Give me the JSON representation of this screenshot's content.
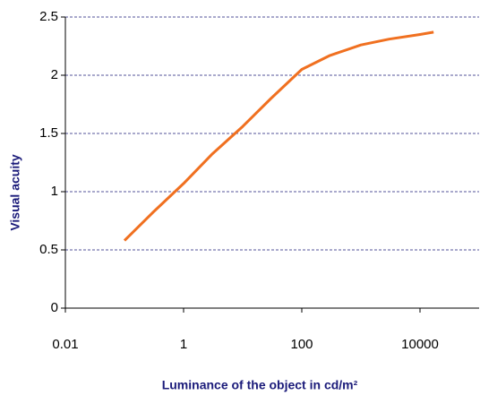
{
  "chart_data": {
    "type": "line",
    "x_label": "Luminance of the object in cd/m²",
    "y_label": "Visual acuity",
    "x": [
      0.1,
      0.3,
      1,
      3,
      10,
      30,
      100,
      300,
      1000,
      3000,
      10000,
      17000
    ],
    "values": [
      0.58,
      0.82,
      1.07,
      1.32,
      1.56,
      1.8,
      2.05,
      2.17,
      2.26,
      2.31,
      2.35,
      2.37
    ],
    "color": "#f07020",
    "xscale": "log",
    "xlim": [
      0.01,
      100000
    ],
    "xticks": [
      0.01,
      1,
      100,
      10000
    ],
    "ylim": [
      0,
      2.5
    ],
    "yticks": [
      0,
      0.5,
      1,
      1.5,
      2,
      2.5
    ],
    "grid": true
  }
}
